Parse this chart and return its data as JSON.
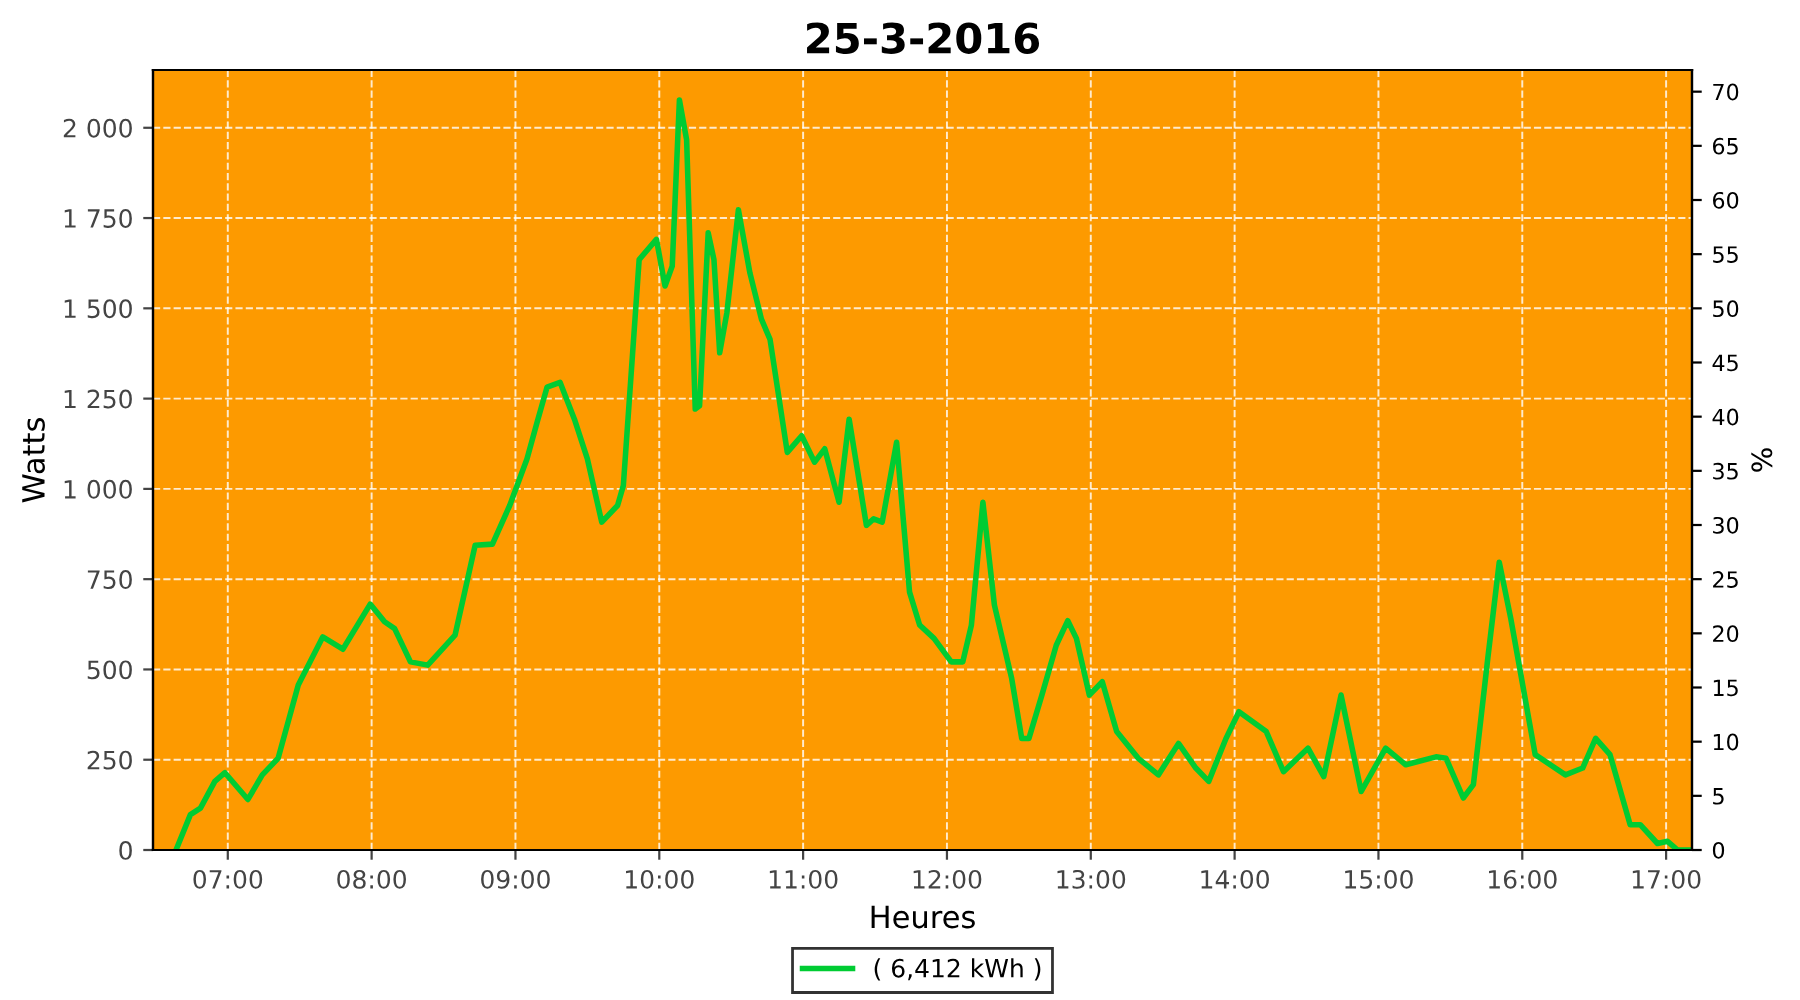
{
  "chart_data": {
    "type": "line",
    "title": "25-3-2016",
    "xlabel": "Heures",
    "ylabel": "Watts",
    "y2label": "%",
    "xlim": [
      6.48,
      17.18
    ],
    "xticks": [
      {
        "value": 7,
        "label": "07:00"
      },
      {
        "value": 8,
        "label": "08:00"
      },
      {
        "value": 9,
        "label": "09:00"
      },
      {
        "value": 10,
        "label": "10:00"
      },
      {
        "value": 11,
        "label": "11:00"
      },
      {
        "value": 12,
        "label": "12:00"
      },
      {
        "value": 13,
        "label": "13:00"
      },
      {
        "value": 14,
        "label": "14:00"
      },
      {
        "value": 15,
        "label": "15:00"
      },
      {
        "value": 16,
        "label": "16:00"
      },
      {
        "value": 17,
        "label": "17:00"
      }
    ],
    "ylim": [
      0,
      2160
    ],
    "yticks": [
      0,
      250,
      500,
      750,
      {
        "value": 1000,
        "label": "1 000"
      },
      {
        "value": 1250,
        "label": "1 250"
      },
      {
        "value": 1500,
        "label": "1 500"
      },
      {
        "value": 1750,
        "label": "1 750"
      },
      {
        "value": 2000,
        "label": "2 000"
      }
    ],
    "y2lim": [
      0,
      72
    ],
    "y2ticks": [
      0,
      5,
      10,
      15,
      20,
      25,
      30,
      35,
      40,
      45,
      50,
      55,
      60,
      65,
      70
    ],
    "grid": true,
    "legend": "bottom",
    "marker": "none",
    "line_style": "solid",
    "series": [
      {
        "name": "( 6,412 kWh )",
        "color": "#00cc33",
        "x": [
          6.64,
          6.74,
          6.81,
          6.91,
          6.98,
          7.14,
          7.24,
          7.35,
          7.49,
          7.66,
          7.8,
          7.99,
          8.09,
          8.16,
          8.27,
          8.39,
          8.58,
          8.72,
          8.84,
          8.96,
          9.08,
          9.15,
          9.22,
          9.31,
          9.41,
          9.5,
          9.6,
          9.71,
          9.75,
          9.86,
          9.98,
          10.04,
          10.09,
          10.14,
          10.19,
          10.25,
          10.28,
          10.34,
          10.38,
          10.42,
          10.47,
          10.55,
          10.63,
          10.71,
          10.77,
          10.89,
          10.99,
          11.08,
          11.15,
          11.25,
          11.32,
          11.44,
          11.49,
          11.55,
          11.65,
          11.74,
          11.81,
          11.91,
          12.03,
          12.11,
          12.17,
          12.25,
          12.33,
          12.45,
          12.52,
          12.57,
          12.66,
          12.76,
          12.84,
          12.9,
          12.99,
          13.08,
          13.18,
          13.33,
          13.47,
          13.61,
          13.73,
          13.82,
          13.94,
          14.03,
          14.22,
          14.34,
          14.51,
          14.62,
          14.74,
          14.88,
          15.05,
          15.19,
          15.4,
          15.47,
          15.59,
          15.66,
          15.76,
          15.84,
          15.92,
          16.09,
          16.3,
          16.42,
          16.51,
          16.61,
          16.75,
          16.82,
          16.94,
          17.01,
          17.08,
          17.17
        ],
        "values": [
          0,
          98,
          116,
          190,
          214,
          140,
          208,
          254,
          457,
          590,
          556,
          681,
          632,
          613,
          521,
          512,
          595,
          844,
          847,
          954,
          1083,
          1184,
          1282,
          1295,
          1193,
          1083,
          908,
          954,
          1009,
          1635,
          1691,
          1562,
          1617,
          2077,
          1967,
          1221,
          1230,
          1709,
          1635,
          1377,
          1488,
          1773,
          1598,
          1470,
          1414,
          1101,
          1147,
          1074,
          1111,
          963,
          1193,
          899,
          917,
          908,
          1129,
          714,
          623,
          586,
          521,
          521,
          623,
          963,
          678,
          475,
          309,
          309,
          429,
          567,
          635,
          586,
          429,
          466,
          328,
          254,
          208,
          295,
          227,
          190,
          309,
          383,
          328,
          217,
          282,
          203,
          429,
          162,
          282,
          236,
          258,
          254,
          144,
          181,
          530,
          797,
          641,
          264,
          208,
          227,
          309,
          264,
          70,
          70,
          18,
          24,
          0,
          0
        ]
      }
    ]
  }
}
